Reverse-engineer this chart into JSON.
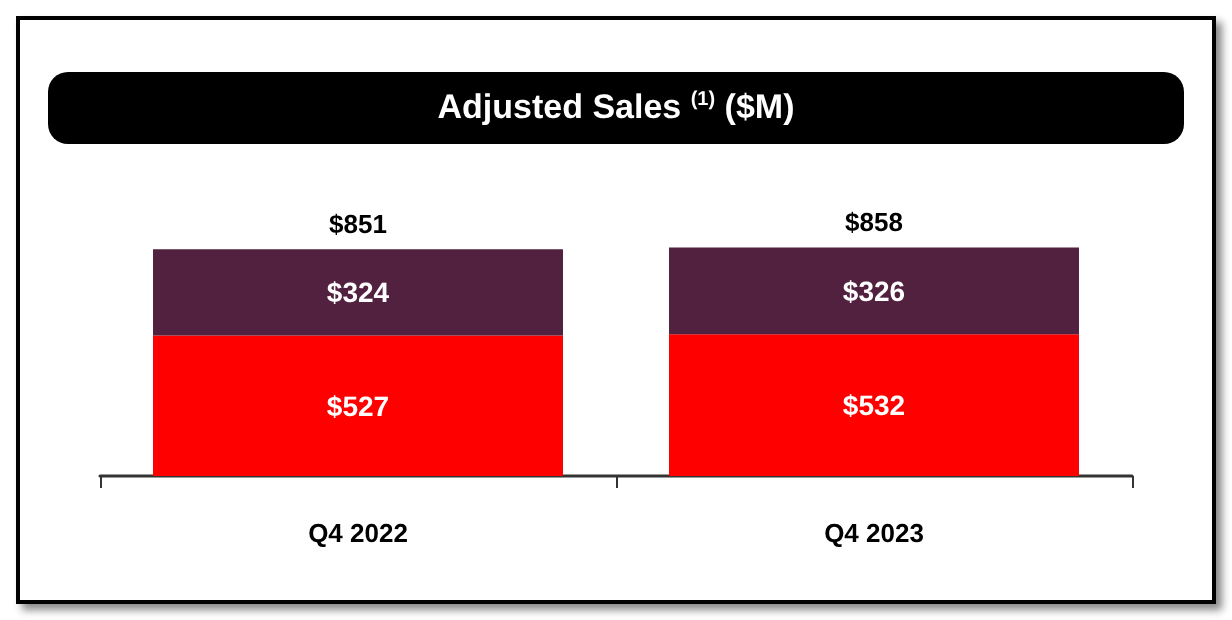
{
  "chart_data": {
    "type": "bar",
    "title": "Adjusted Sales $^{(1)}$ ($M)",
    "stacked": true,
    "categories": [
      "Q4 2022",
      "Q4 2023"
    ],
    "series": [
      {
        "color": "#ff0000",
        "values": [
          527,
          532
        ],
        "value_labels": [
          "$527",
          "$532"
        ]
      },
      {
        "color": "#52213f",
        "values": [
          324,
          326
        ],
        "value_labels": [
          "$324",
          "$326"
        ]
      }
    ],
    "totals": [
      "$851",
      "$858"
    ]
  }
}
